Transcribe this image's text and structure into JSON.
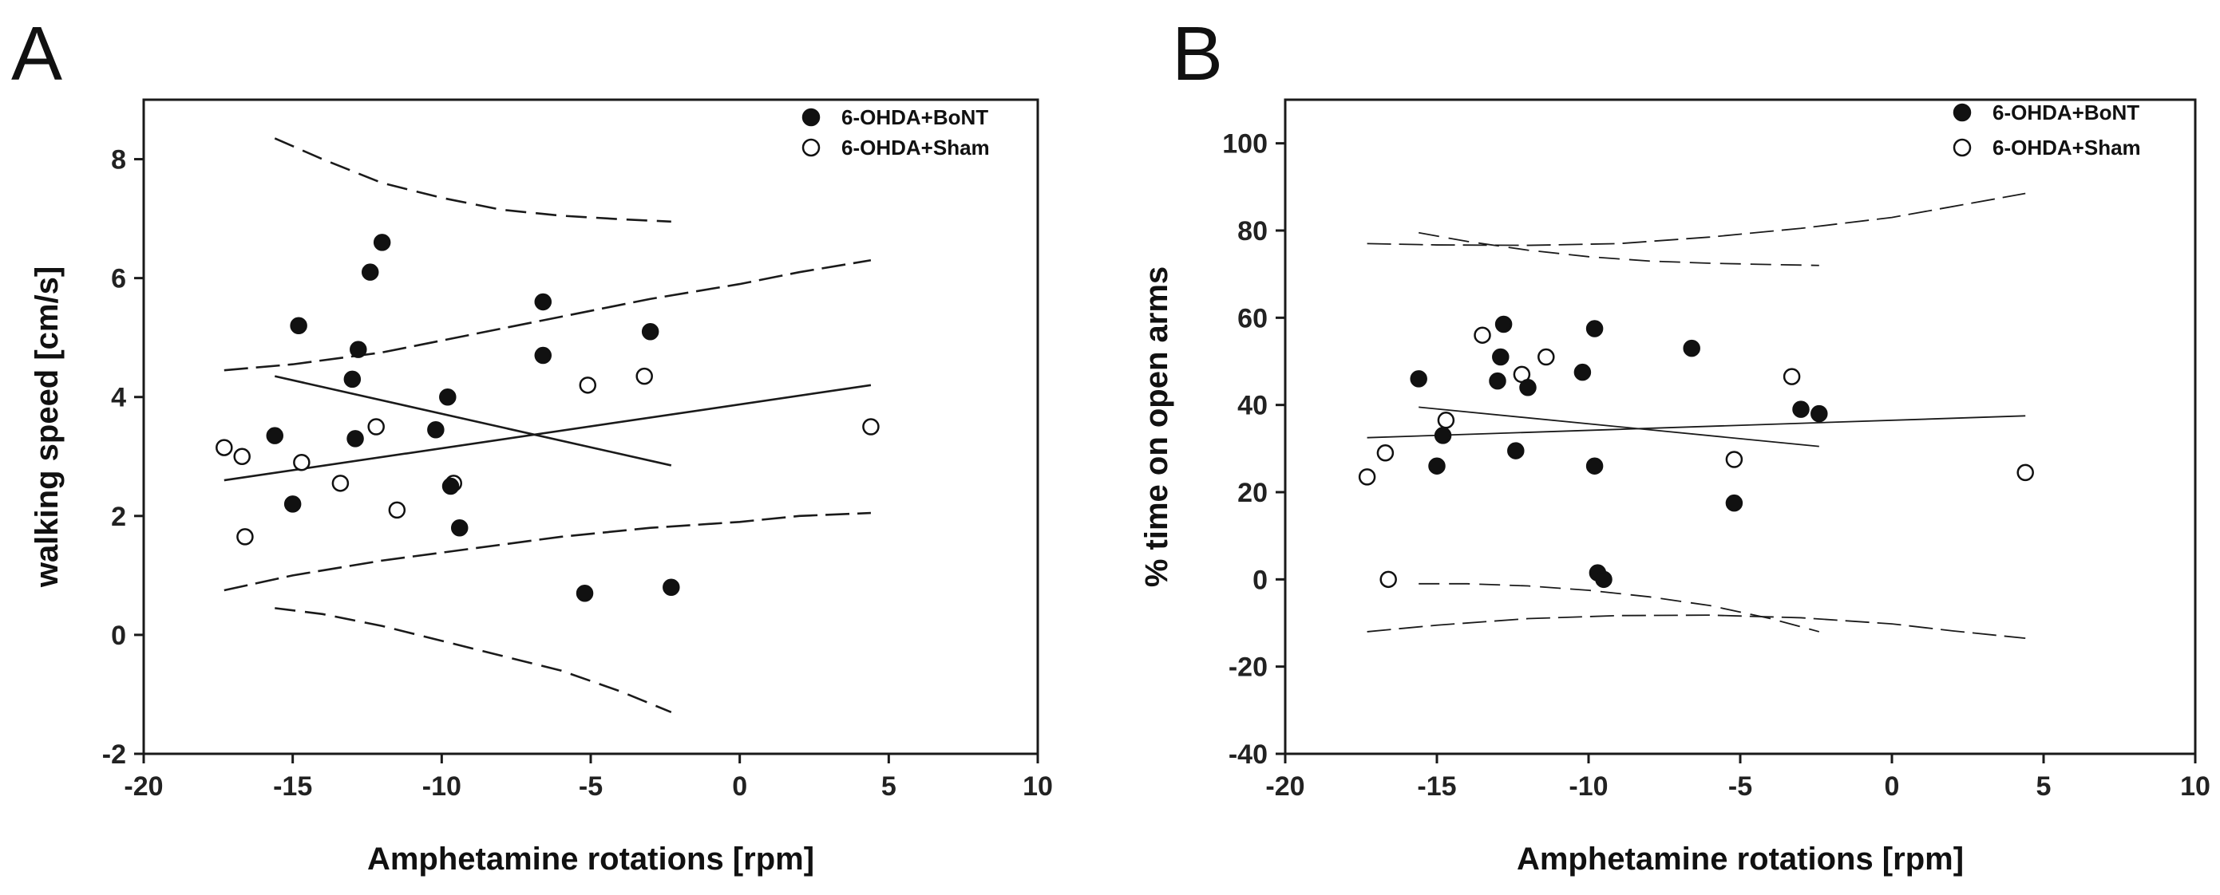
{
  "chart_data": [
    {
      "type": "scatter",
      "panel_label": "A",
      "xlabel": "Amphetamine rotations [rpm]",
      "ylabel": "walking speed [cm/s]",
      "xlim": [
        -20,
        10
      ],
      "ylim": [
        -2,
        9
      ],
      "xticks": [
        -20,
        -15,
        -10,
        -5,
        0,
        5,
        10
      ],
      "yticks": [
        -2,
        0,
        2,
        4,
        6,
        8
      ],
      "legend": {
        "position": "top-right",
        "entries": [
          "6-OHDA+BoNT",
          "6-OHDA+Sham"
        ]
      },
      "series": [
        {
          "name": "6-OHDA+BoNT",
          "marker": "filled-circle",
          "x": [
            -15.6,
            -15.0,
            -14.8,
            -13.0,
            -12.9,
            -12.8,
            -12.4,
            -12.0,
            -10.2,
            -9.8,
            -9.7,
            -9.4,
            -6.6,
            -6.6,
            -5.2,
            -3.0,
            -2.3
          ],
          "y": [
            3.35,
            2.2,
            5.2,
            4.3,
            3.3,
            4.8,
            6.1,
            6.6,
            3.45,
            4.0,
            2.5,
            1.8,
            5.6,
            4.7,
            0.7,
            5.1,
            0.8
          ],
          "fit": {
            "x": [
              -15.6,
              -2.3
            ],
            "y": [
              4.35,
              2.85
            ]
          },
          "ci_upper": {
            "x": [
              -15.6,
              -14,
              -12,
              -10,
              -8,
              -6,
              -4,
              -2.3
            ],
            "y": [
              8.35,
              8.0,
              7.6,
              7.35,
              7.15,
              7.05,
              6.99,
              6.95
            ]
          },
          "ci_lower": {
            "x": [
              -15.6,
              -14,
              -12,
              -10,
              -8,
              -6,
              -4,
              -2.3
            ],
            "y": [
              0.45,
              0.35,
              0.15,
              -0.1,
              -0.35,
              -0.6,
              -0.95,
              -1.3
            ]
          }
        },
        {
          "name": "6-OHDA+Sham",
          "marker": "open-circle",
          "x": [
            -17.3,
            -16.7,
            -16.6,
            -14.7,
            -13.4,
            -12.2,
            -11.5,
            -9.6,
            -5.1,
            -3.2,
            4.4
          ],
          "y": [
            3.15,
            3.0,
            1.65,
            2.9,
            2.55,
            3.5,
            2.1,
            2.55,
            4.2,
            4.35,
            3.5
          ],
          "fit": {
            "x": [
              -17.3,
              4.4
            ],
            "y": [
              2.6,
              4.2
            ]
          },
          "ci_upper": {
            "x": [
              -17.3,
              -15,
              -12,
              -9,
              -6,
              -3,
              0,
              2,
              4.4
            ],
            "y": [
              4.45,
              4.55,
              4.75,
              5.05,
              5.35,
              5.65,
              5.9,
              6.1,
              6.3
            ]
          },
          "ci_lower": {
            "x": [
              -17.3,
              -15,
              -12,
              -9,
              -6,
              -3,
              0,
              2,
              4.4
            ],
            "y": [
              0.75,
              1.0,
              1.25,
              1.45,
              1.65,
              1.8,
              1.9,
              2.0,
              2.05
            ]
          }
        }
      ]
    },
    {
      "type": "scatter",
      "panel_label": "B",
      "xlabel": "Amphetamine rotations [rpm]",
      "ylabel": "% time on open arms",
      "xlim": [
        -20,
        10
      ],
      "ylim": [
        -40,
        110
      ],
      "xticks": [
        -20,
        -15,
        -10,
        -5,
        0,
        5,
        10
      ],
      "yticks": [
        -40,
        -20,
        0,
        20,
        40,
        60,
        80,
        100
      ],
      "legend": {
        "position": "top-right",
        "entries": [
          "6-OHDA+BoNT",
          "6-OHDA+Sham"
        ]
      },
      "series": [
        {
          "name": "6-OHDA+BoNT",
          "marker": "filled-circle",
          "x": [
            -15.6,
            -15.0,
            -14.8,
            -13.0,
            -12.9,
            -12.8,
            -12.4,
            -12.0,
            -10.2,
            -9.8,
            -9.8,
            -9.7,
            -9.5,
            -6.6,
            -5.2,
            -3.0,
            -2.4
          ],
          "y": [
            46,
            26,
            33,
            45.5,
            51,
            58.5,
            29.5,
            44,
            47.5,
            57.5,
            26,
            1.5,
            0,
            53,
            17.5,
            39,
            38
          ],
          "fit": {
            "x": [
              -15.6,
              -2.4
            ],
            "y": [
              39.5,
              30.5
            ]
          },
          "ci_upper": {
            "x": [
              -15.6,
              -14,
              -12,
              -10,
              -8,
              -6,
              -4,
              -2.4
            ],
            "y": [
              79.5,
              77.5,
              75.5,
              74,
              73,
              72.5,
              72.2,
              72
            ]
          },
          "ci_lower": {
            "x": [
              -15.6,
              -14,
              -12,
              -10,
              -8,
              -6,
              -4,
              -2.4
            ],
            "y": [
              -1,
              -1,
              -1.5,
              -2.5,
              -4,
              -6,
              -9,
              -12
            ]
          }
        },
        {
          "name": "6-OHDA+Sham",
          "marker": "open-circle",
          "x": [
            -17.3,
            -16.7,
            -16.6,
            -14.7,
            -13.5,
            -12.2,
            -11.4,
            -5.2,
            -3.3,
            4.4
          ],
          "y": [
            23.5,
            29,
            0,
            36.5,
            56,
            47,
            51,
            27.5,
            46.5,
            24.5
          ],
          "fit": {
            "x": [
              -17.3,
              4.4
            ],
            "y": [
              32.5,
              37.5
            ]
          },
          "ci_upper": {
            "x": [
              -17.3,
              -15,
              -12,
              -9,
              -6,
              -3,
              0,
              2,
              4.4
            ],
            "y": [
              77,
              76.7,
              76.6,
              77,
              78.5,
              80.5,
              83,
              85.5,
              88.5
            ]
          },
          "ci_lower": {
            "x": [
              -17.3,
              -15,
              -12,
              -9,
              -6,
              -3,
              0,
              2,
              4.4
            ],
            "y": [
              -12,
              -10.5,
              -9,
              -8.3,
              -8.2,
              -8.8,
              -10.2,
              -11.8,
              -13.5
            ]
          }
        }
      ]
    }
  ]
}
